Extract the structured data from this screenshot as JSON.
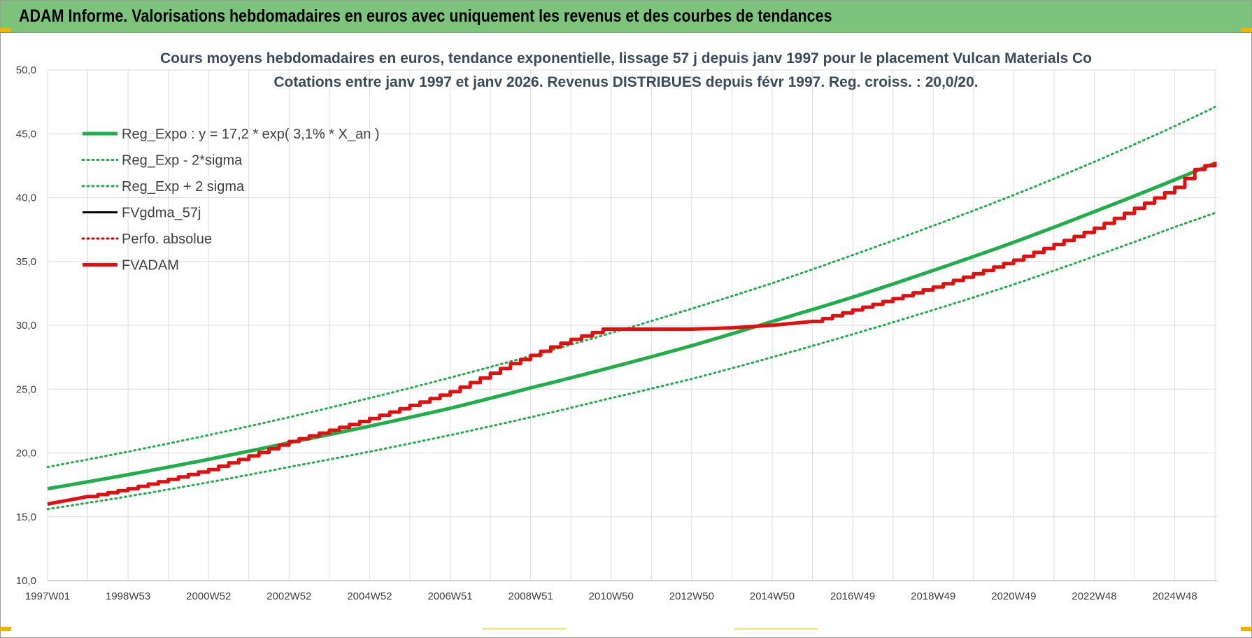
{
  "header": {
    "title": "ADAM Informe. Valorisations hebdomadaires en euros avec uniquement les revenus et des courbes de tendances"
  },
  "colors": {
    "header_bg": "#7cc47c",
    "trend_green": "#1fae4a",
    "band_green": "#1fae4a",
    "fvadam_red": "#e01010",
    "perf_red": "#d00000",
    "fvgdma_black": "#000000",
    "grid": "#dcdcdc"
  },
  "chart_data": {
    "type": "line",
    "title": "Cours moyens hebdomadaires en euros, tendance exponentielle, lissage 57 j depuis janv 1997 pour le placement Vulcan Materials Co",
    "subtitle": "Cotations entre janv 1997 et janv 2026. Revenus DISTRIBUES depuis févr 1997. Reg. croiss. : 20,0/20.",
    "ylim": [
      10,
      50
    ],
    "xlim": [
      1997.0,
      2026.05
    ],
    "y_ticks": [
      "10,0",
      "15,0",
      "20,0",
      "25,0",
      "30,0",
      "35,0",
      "40,0",
      "45,0",
      "50,0"
    ],
    "y_tick_values": [
      10,
      15,
      20,
      25,
      30,
      35,
      40,
      45,
      50
    ],
    "x_ticks": [
      "1997W01",
      "1998W53",
      "2000W52",
      "2002W52",
      "2004W52",
      "2006W51",
      "2008W51",
      "2010W50",
      "2012W50",
      "2014W50",
      "2016W49",
      "2018W49",
      "2020W49",
      "2022W48",
      "2024W48"
    ],
    "x_tick_values": [
      1997,
      1999,
      2001,
      2003,
      2005,
      2007,
      2009,
      2011,
      2013,
      2015,
      2017,
      2019,
      2021,
      2023,
      2025
    ],
    "grid": true,
    "legend_position": "top-left",
    "series": [
      {
        "name": "Reg_Expo : y = 17,2 * exp( 3,1% *  X_an )",
        "style": "solid-thick",
        "color": "#1fae4a",
        "x": [
          1997,
          1999,
          2001,
          2003,
          2005,
          2007,
          2009,
          2011,
          2013,
          2015,
          2017,
          2019,
          2021,
          2023,
          2025,
          2026
        ],
        "values": [
          17.2,
          18.3,
          19.5,
          20.8,
          22.1,
          23.5,
          25.1,
          26.7,
          28.4,
          30.3,
          32.2,
          34.3,
          36.5,
          38.9,
          41.4,
          42.7
        ]
      },
      {
        "name": "Reg_Exp - 2*sigma",
        "style": "dotted",
        "color": "#1fae4a",
        "x": [
          1997,
          1999,
          2001,
          2003,
          2005,
          2007,
          2009,
          2011,
          2013,
          2015,
          2017,
          2019,
          2021,
          2023,
          2025,
          2026
        ],
        "values": [
          15.6,
          16.6,
          17.7,
          18.9,
          20.1,
          21.4,
          22.8,
          24.3,
          25.8,
          27.5,
          29.3,
          31.2,
          33.2,
          35.4,
          37.7,
          38.8
        ]
      },
      {
        "name": "Reg_Exp + 2 sigma",
        "style": "dotted",
        "color": "#1fae4a",
        "x": [
          1997,
          1999,
          2001,
          2003,
          2005,
          2007,
          2009,
          2011,
          2013,
          2015,
          2017,
          2019,
          2021,
          2023,
          2025,
          2026
        ],
        "values": [
          18.9,
          20.1,
          21.4,
          22.8,
          24.3,
          25.9,
          27.6,
          29.4,
          31.3,
          33.3,
          35.5,
          37.8,
          40.2,
          42.8,
          45.6,
          47.1
        ]
      },
      {
        "name": "FVgdma_57j",
        "style": "solid",
        "color": "#000000",
        "x": [],
        "values": []
      },
      {
        "name": "Perfo. absolue",
        "style": "dotted",
        "color": "#d00000",
        "x": [],
        "values": []
      },
      {
        "name": "FVADAM",
        "style": "solid-thick",
        "color": "#e01010",
        "x": [
          1997,
          1999,
          2001,
          2003,
          2005,
          2007,
          2008.5,
          2009.5,
          2010,
          2010.8,
          2013,
          2014,
          2015,
          2016,
          2017,
          2019,
          2021,
          2023,
          2025,
          2025.5,
          2026
        ],
        "values": [
          16.0,
          17.2,
          18.7,
          20.9,
          22.7,
          24.8,
          27.0,
          28.3,
          28.9,
          29.7,
          29.7,
          29.8,
          30.0,
          30.3,
          31.2,
          33.0,
          35.1,
          37.6,
          40.8,
          42.2,
          42.8
        ]
      }
    ]
  }
}
